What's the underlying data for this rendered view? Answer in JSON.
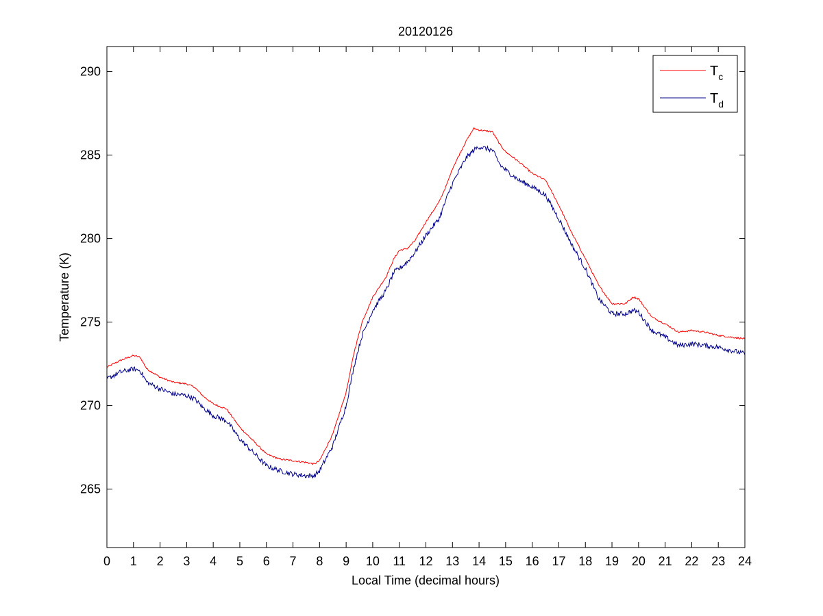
{
  "chart_data": {
    "type": "line",
    "title": "20120126",
    "xlabel": "Local Time (decimal hours)",
    "ylabel": "Temperature (K)",
    "xlim": [
      0,
      24
    ],
    "ylim": [
      261.5,
      291.5
    ],
    "xticks": [
      0,
      1,
      2,
      3,
      4,
      5,
      6,
      7,
      8,
      9,
      10,
      11,
      12,
      13,
      14,
      15,
      16,
      17,
      18,
      19,
      20,
      21,
      22,
      23,
      24
    ],
    "yticks": [
      265,
      270,
      275,
      280,
      285,
      290
    ],
    "grid": false,
    "legend_position": "top-right",
    "series": [
      {
        "name": "T",
        "name_subscript": "c",
        "color": "#ff0000",
        "noise": 0.05,
        "x": [
          0,
          0.5,
          1.0,
          1.25,
          1.5,
          2.0,
          2.5,
          3.0,
          3.3,
          3.6,
          4.0,
          4.5,
          5.0,
          5.5,
          6.0,
          6.5,
          7.0,
          7.5,
          7.8,
          8.0,
          8.5,
          9.0,
          9.3,
          9.6,
          10.0,
          10.5,
          10.8,
          11.0,
          11.3,
          11.6,
          12.0,
          12.5,
          12.8,
          13.0,
          13.5,
          13.8,
          14.0,
          14.5,
          14.8,
          15.0,
          15.5,
          16.0,
          16.5,
          17.0,
          17.5,
          18.0,
          18.5,
          19.0,
          19.5,
          19.8,
          20.0,
          20.5,
          21.0,
          21.5,
          22.0,
          22.5,
          23.0,
          23.5,
          24.0
        ],
        "y": [
          272.3,
          272.7,
          273.0,
          272.9,
          272.2,
          271.7,
          271.4,
          271.3,
          271.1,
          270.6,
          270.1,
          269.8,
          268.7,
          267.9,
          267.1,
          266.8,
          266.7,
          266.6,
          266.5,
          266.7,
          268.3,
          270.8,
          273.2,
          275.0,
          276.5,
          277.7,
          278.8,
          279.3,
          279.4,
          279.9,
          281.0,
          282.2,
          283.3,
          284.2,
          285.8,
          286.6,
          286.5,
          286.4,
          285.6,
          285.2,
          284.6,
          283.9,
          283.5,
          282.0,
          280.3,
          278.8,
          277.2,
          276.1,
          276.1,
          276.5,
          276.4,
          275.3,
          274.9,
          274.4,
          274.5,
          274.4,
          274.2,
          274.1,
          274.0
        ]
      },
      {
        "name": "T",
        "name_subscript": "d",
        "color": "#00008b",
        "noise": 0.15,
        "x": [
          0,
          0.5,
          1.0,
          1.25,
          1.5,
          2.0,
          2.5,
          3.0,
          3.3,
          3.6,
          4.0,
          4.5,
          5.0,
          5.5,
          6.0,
          6.5,
          7.0,
          7.5,
          7.8,
          8.0,
          8.5,
          9.0,
          9.3,
          9.6,
          10.0,
          10.5,
          10.8,
          11.0,
          11.3,
          11.6,
          12.0,
          12.5,
          12.8,
          13.0,
          13.5,
          13.8,
          14.0,
          14.5,
          14.8,
          15.0,
          15.5,
          16.0,
          16.5,
          17.0,
          17.5,
          18.0,
          18.5,
          19.0,
          19.5,
          19.8,
          20.0,
          20.5,
          21.0,
          21.5,
          22.0,
          22.5,
          23.0,
          23.5,
          24.0
        ],
        "y": [
          271.6,
          272.0,
          272.2,
          272.1,
          271.4,
          271.0,
          270.7,
          270.6,
          270.4,
          269.9,
          269.4,
          269.1,
          268.0,
          267.2,
          266.4,
          266.1,
          265.9,
          265.8,
          265.8,
          266.1,
          267.6,
          270.0,
          272.4,
          274.2,
          275.7,
          276.9,
          278.0,
          278.2,
          278.6,
          279.2,
          280.2,
          281.2,
          282.5,
          283.3,
          284.8,
          285.3,
          285.5,
          285.3,
          284.4,
          284.1,
          283.5,
          283.1,
          282.6,
          281.2,
          279.6,
          278.2,
          276.4,
          275.5,
          275.5,
          275.7,
          275.6,
          274.5,
          274.1,
          273.6,
          273.7,
          273.6,
          273.5,
          273.3,
          273.1
        ]
      }
    ]
  }
}
